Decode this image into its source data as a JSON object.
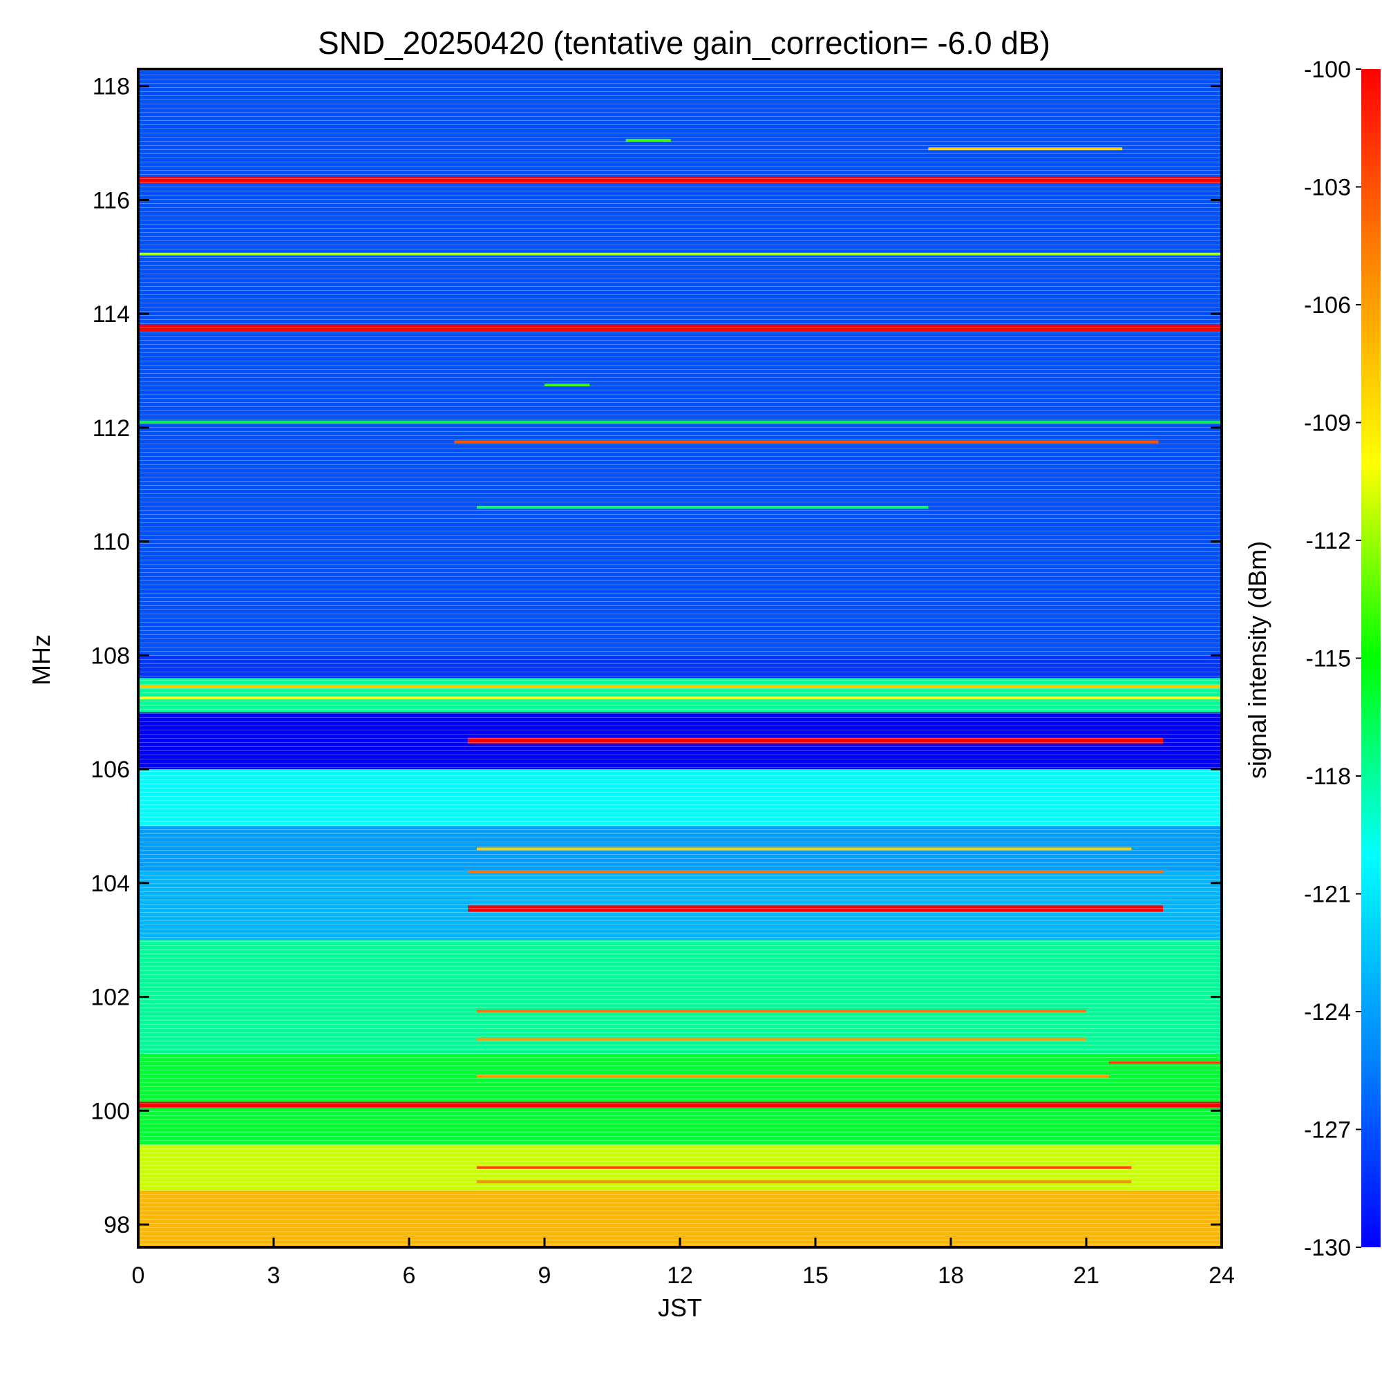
{
  "chart_data": {
    "type": "heatmap",
    "title": "SND_20250420 (tentative gain_correction= -6.0 dB)",
    "xlabel": "JST",
    "ylabel": "MHz",
    "colorbar_label": "signal intensity (dBm)",
    "xlim": [
      0,
      24
    ],
    "ylim": [
      97.6,
      118.3
    ],
    "x_ticks": [
      "0",
      "3",
      "6",
      "9",
      "12",
      "15",
      "18",
      "21",
      "24"
    ],
    "y_ticks": [
      "98",
      "100",
      "102",
      "104",
      "106",
      "108",
      "110",
      "112",
      "114",
      "116",
      "118"
    ],
    "colorbar": {
      "range": [
        -130,
        -100
      ],
      "ticks": [
        "-100",
        "-103",
        "-106",
        "-109",
        "-112",
        "-115",
        "-118",
        "-121",
        "-124",
        "-127",
        "-130"
      ],
      "colors": [
        "#0000ff",
        "#0088ff",
        "#00ffff",
        "#00ff00",
        "#ffff00",
        "#ff8800",
        "#ff0000"
      ]
    },
    "frequency_regions": [
      {
        "freq": [
          97.6,
          98.6
        ],
        "intensity": -107
      },
      {
        "freq": [
          98.6,
          99.4
        ],
        "intensity": -111
      },
      {
        "freq": [
          99.4,
          101.0
        ],
        "intensity": -116
      },
      {
        "freq": [
          101.0,
          103.0
        ],
        "intensity": -118
      },
      {
        "freq": [
          103.0,
          104.2
        ],
        "intensity": -123
      },
      {
        "freq": [
          104.2,
          105.0
        ],
        "intensity": -124
      },
      {
        "freq": [
          105.0,
          106.0
        ],
        "intensity": -120
      },
      {
        "freq": [
          106.0,
          107.0
        ],
        "intensity": -130
      },
      {
        "freq": [
          107.0,
          107.6
        ],
        "intensity": -118
      },
      {
        "freq": [
          107.6,
          108.0
        ],
        "intensity": -128
      },
      {
        "freq": [
          108.0,
          118.3
        ],
        "intensity": -127
      }
    ],
    "strong_signals": [
      {
        "freq": 116.35,
        "x": [
          0,
          24
        ],
        "intensity": -100
      },
      {
        "freq": 115.05,
        "x": [
          0,
          24
        ],
        "intensity": -112
      },
      {
        "freq": 113.75,
        "x": [
          0,
          24
        ],
        "intensity": -100
      },
      {
        "freq": 112.1,
        "x": [
          0,
          24
        ],
        "intensity": -116
      },
      {
        "freq": 111.75,
        "x": [
          7,
          22.6
        ],
        "intensity": -103
      },
      {
        "freq": 110.6,
        "x": [
          7.5,
          17.5
        ],
        "intensity": -117
      },
      {
        "freq": 107.45,
        "x": [
          0,
          24
        ],
        "intensity": -108
      },
      {
        "freq": 107.25,
        "x": [
          0,
          24
        ],
        "intensity": -110
      },
      {
        "freq": 106.5,
        "x": [
          7.3,
          22.7
        ],
        "intensity": -100
      },
      {
        "freq": 103.55,
        "x": [
          7.3,
          22.7
        ],
        "intensity": -100
      },
      {
        "freq": 100.1,
        "x": [
          0,
          24
        ],
        "intensity": -100
      },
      {
        "freq": 100.85,
        "x": [
          21.5,
          24
        ],
        "intensity": -102
      },
      {
        "freq": 116.9,
        "x": [
          17.5,
          21.8
        ],
        "intensity": -108
      },
      {
        "freq": 117.05,
        "x": [
          10.8,
          11.8
        ],
        "intensity": -114
      },
      {
        "freq": 112.75,
        "x": [
          9,
          10
        ],
        "intensity": -114
      },
      {
        "freq": 99.0,
        "x": [
          7.5,
          22
        ],
        "intensity": -103
      },
      {
        "freq": 98.75,
        "x": [
          7.5,
          22
        ],
        "intensity": -105
      },
      {
        "freq": 101.75,
        "x": [
          7.5,
          21
        ],
        "intensity": -104
      },
      {
        "freq": 101.25,
        "x": [
          7.5,
          21
        ],
        "intensity": -106
      },
      {
        "freq": 100.6,
        "x": [
          7.5,
          21.5
        ],
        "intensity": -106
      },
      {
        "freq": 104.2,
        "x": [
          7.3,
          22.7
        ],
        "intensity": -104
      },
      {
        "freq": 104.6,
        "x": [
          7.5,
          22
        ],
        "intensity": -108
      }
    ]
  }
}
